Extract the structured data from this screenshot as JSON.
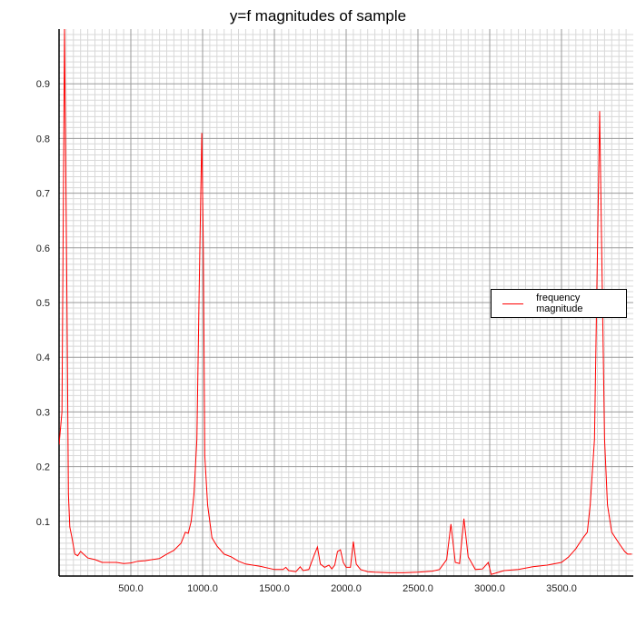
{
  "chart_data": {
    "type": "line",
    "title": "y=f magnitudes of sample",
    "xlabel": "",
    "ylabel": "",
    "xlim": [
      0,
      4000
    ],
    "ylim": [
      0,
      1
    ],
    "x_ticks": [
      "500.0",
      "1000.0",
      "1500.0",
      "2000.0",
      "2500.0",
      "3000.0",
      "3500.0"
    ],
    "y_ticks": [
      "0.1",
      "0.2",
      "0.3",
      "0.4",
      "0.5",
      "0.6",
      "0.7",
      "0.8",
      "0.9"
    ],
    "grid": true,
    "legend_position": "right",
    "series": [
      {
        "name": "frequency magnitude",
        "color": "#ff0000",
        "x": [
          0,
          20,
          38,
          55,
          65,
          75,
          90,
          110,
          130,
          150,
          170,
          200,
          250,
          300,
          350,
          400,
          450,
          500,
          550,
          600,
          650,
          700,
          750,
          800,
          850,
          880,
          900,
          920,
          940,
          960,
          975,
          994,
          1005,
          1015,
          1035,
          1065,
          1100,
          1150,
          1200,
          1250,
          1300,
          1400,
          1500,
          1560,
          1580,
          1600,
          1650,
          1680,
          1700,
          1740,
          1780,
          1800,
          1820,
          1850,
          1880,
          1900,
          1920,
          1940,
          1960,
          1980,
          2000,
          2030,
          2050,
          2070,
          2100,
          2150,
          2200,
          2300,
          2400,
          2500,
          2600,
          2650,
          2700,
          2730,
          2760,
          2790,
          2820,
          2850,
          2900,
          2950,
          2990,
          3010,
          3100,
          3200,
          3300,
          3400,
          3500,
          3550,
          3600,
          3650,
          3680,
          3700,
          3730,
          3766,
          3780,
          3800,
          3820,
          3850,
          3900,
          3940,
          3960,
          3990
        ],
        "y": [
          0.24,
          0.3,
          1.0,
          0.5,
          0.15,
          0.09,
          0.07,
          0.04,
          0.037,
          0.045,
          0.04,
          0.033,
          0.03,
          0.025,
          0.025,
          0.025,
          0.023,
          0.024,
          0.027,
          0.028,
          0.03,
          0.032,
          0.04,
          0.047,
          0.06,
          0.08,
          0.078,
          0.1,
          0.15,
          0.25,
          0.5,
          0.81,
          0.6,
          0.22,
          0.13,
          0.07,
          0.055,
          0.04,
          0.035,
          0.027,
          0.022,
          0.018,
          0.012,
          0.012,
          0.016,
          0.01,
          0.008,
          0.017,
          0.01,
          0.012,
          0.04,
          0.053,
          0.022,
          0.016,
          0.02,
          0.013,
          0.02,
          0.045,
          0.048,
          0.025,
          0.016,
          0.016,
          0.063,
          0.022,
          0.012,
          0.008,
          0.007,
          0.006,
          0.006,
          0.007,
          0.009,
          0.012,
          0.03,
          0.095,
          0.025,
          0.023,
          0.105,
          0.035,
          0.012,
          0.013,
          0.025,
          0.003,
          0.01,
          0.012,
          0.017,
          0.02,
          0.025,
          0.035,
          0.05,
          0.07,
          0.08,
          0.13,
          0.25,
          0.85,
          0.6,
          0.25,
          0.13,
          0.08,
          0.06,
          0.045,
          0.04,
          0.04
        ]
      }
    ]
  }
}
